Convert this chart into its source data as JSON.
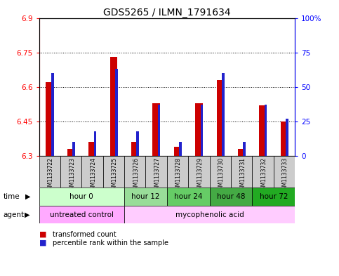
{
  "title": "GDS5265 / ILMN_1791634",
  "samples": [
    "GSM1133722",
    "GSM1133723",
    "GSM1133724",
    "GSM1133725",
    "GSM1133726",
    "GSM1133727",
    "GSM1133728",
    "GSM1133729",
    "GSM1133730",
    "GSM1133731",
    "GSM1133732",
    "GSM1133733"
  ],
  "transformed_count": [
    6.62,
    6.33,
    6.36,
    6.73,
    6.36,
    6.53,
    6.34,
    6.53,
    6.63,
    6.33,
    6.52,
    6.45
  ],
  "percentile_rank": [
    60,
    10,
    18,
    63,
    18,
    37,
    10,
    37,
    60,
    10,
    37,
    27
  ],
  "ylim_left": [
    6.3,
    6.9
  ],
  "ylim_right": [
    0,
    100
  ],
  "yticks_left": [
    6.3,
    6.45,
    6.6,
    6.75,
    6.9
  ],
  "yticks_right": [
    0,
    25,
    50,
    75,
    100
  ],
  "ytick_labels_left": [
    "6.3",
    "6.45",
    "6.6",
    "6.75",
    "6.9"
  ],
  "ytick_labels_right": [
    "0",
    "25",
    "50",
    "75",
    "100%"
  ],
  "bar_bottom": 6.3,
  "red_color": "#cc0000",
  "blue_color": "#2222cc",
  "time_colors": [
    "#ccffcc",
    "#99dd99",
    "#66cc66",
    "#44aa44",
    "#22aa22"
  ],
  "time_groups": [
    {
      "label": "hour 0",
      "start": 0,
      "end": 3
    },
    {
      "label": "hour 12",
      "start": 4,
      "end": 5
    },
    {
      "label": "hour 24",
      "start": 6,
      "end": 7
    },
    {
      "label": "hour 48",
      "start": 8,
      "end": 9
    },
    {
      "label": "hour 72",
      "start": 10,
      "end": 11
    }
  ],
  "agent_groups": [
    {
      "label": "untreated control",
      "start": 0,
      "end": 3,
      "color": "#ffaaff"
    },
    {
      "label": "mycophenolic acid",
      "start": 4,
      "end": 11,
      "color": "#ffccff"
    }
  ],
  "legend_red": "transformed count",
  "legend_blue": "percentile rank within the sample",
  "sample_bg_color": "#cccccc",
  "title_fontsize": 10,
  "tick_fontsize": 7.5,
  "sample_fontsize": 5.5,
  "row_fontsize": 7.5,
  "legend_fontsize": 7
}
